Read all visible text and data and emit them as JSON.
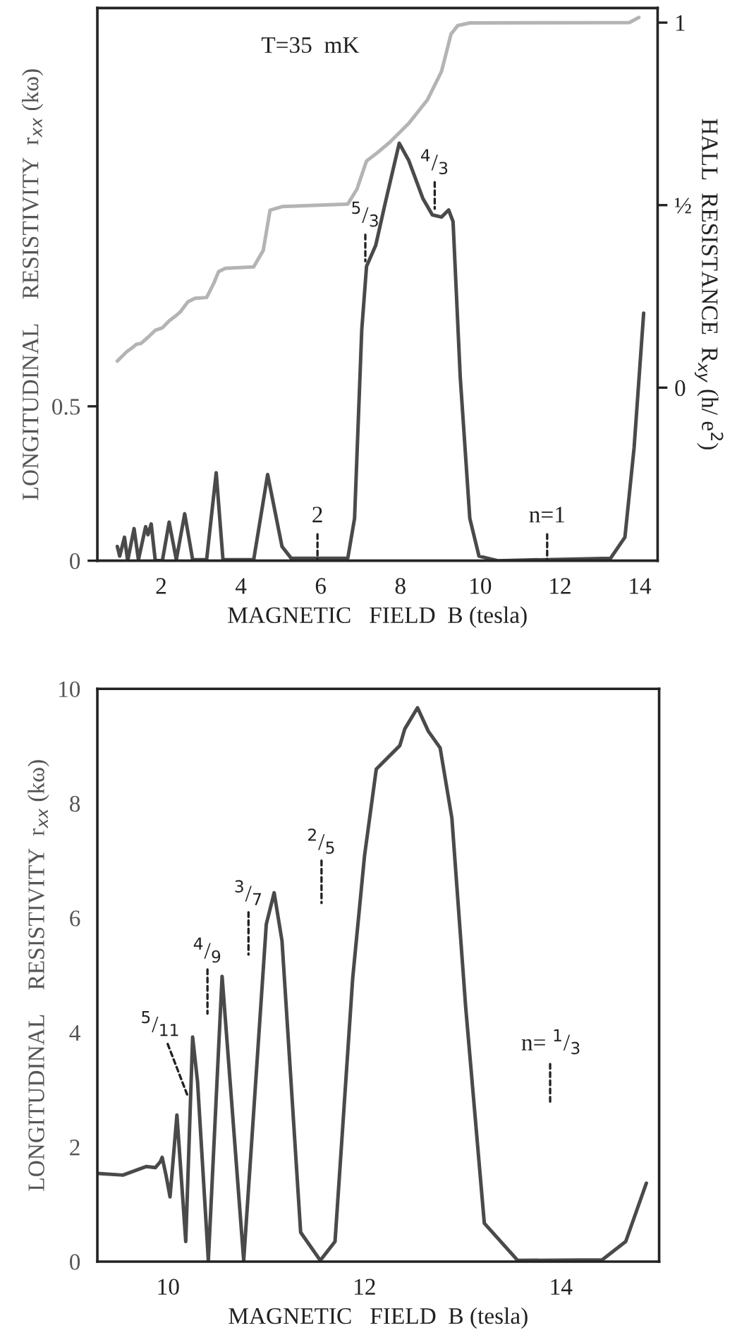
{
  "chart_data": [
    {
      "type": "line",
      "xlabel": "MAGNETIC   FIELD  B (tesla)",
      "ylabel": "LONGITUDINAL    RESISTIVITY  r$_{xx}$ (kω)",
      "y2label": "HALL  RESISTANCE  R$_{xy}$ (h/ e$^{2}$)",
      "xlim": [
        0.4,
        14.45
      ],
      "xticks": [
        2,
        4,
        6,
        8,
        10,
        12,
        14
      ],
      "ylim": [
        0,
        1.79
      ],
      "yticks": [
        0,
        0.5
      ],
      "y2lim": [
        -0.474,
        1.04
      ],
      "y2ticks": [
        0,
        {
          "value": 0.5,
          "label": "½"
        },
        1
      ],
      "grid": false,
      "legend": false,
      "line_style": "solid",
      "marker": "none",
      "series": [
        {
          "color": "#b4b4b4",
          "axis": "y2",
          "x": [
            0.9,
            1.02,
            1.14,
            1.26,
            1.38,
            1.49,
            1.67,
            1.85,
            2.03,
            2.2,
            2.38,
            2.49,
            2.67,
            2.85,
            3.14,
            3.32,
            3.44,
            3.61,
            4.32,
            4.56,
            4.73,
            5.03,
            6.68,
            6.91,
            7.15,
            7.38,
            7.74,
            8.21,
            8.68,
            9.03,
            9.27,
            9.44,
            9.74,
            13.74,
            13.98
          ],
          "values": [
            0.073,
            0.086,
            0.099,
            0.108,
            0.119,
            0.121,
            0.138,
            0.157,
            0.164,
            0.183,
            0.198,
            0.209,
            0.235,
            0.245,
            0.247,
            0.286,
            0.318,
            0.327,
            0.331,
            0.376,
            0.486,
            0.496,
            0.503,
            0.544,
            0.621,
            0.64,
            0.673,
            0.724,
            0.789,
            0.866,
            0.969,
            0.992,
            0.999,
            1.0,
            1.014
          ]
        },
        {
          "color": "#4a4a4a",
          "x": [
            0.9,
            0.96,
            1.08,
            1.16,
            1.32,
            1.43,
            1.61,
            1.67,
            1.75,
            1.85,
            2.03,
            2.2,
            2.38,
            2.59,
            2.79,
            3.14,
            3.38,
            3.55,
            4.32,
            4.67,
            5.03,
            5.26,
            6.68,
            6.85,
            7.03,
            7.15,
            7.38,
            7.62,
            7.97,
            8.21,
            8.56,
            8.8,
            9.03,
            9.21,
            9.32,
            9.5,
            9.74,
            9.97,
            10.44,
            13.27,
            13.63,
            13.86,
            14.1
          ],
          "values": [
            0.046,
            0.015,
            0.076,
            0.0,
            0.104,
            0.003,
            0.11,
            0.084,
            0.119,
            0.003,
            0.0,
            0.125,
            0.003,
            0.152,
            0.003,
            0.003,
            0.285,
            0.003,
            0.003,
            0.279,
            0.046,
            0.008,
            0.008,
            0.137,
            0.747,
            0.953,
            1.021,
            1.159,
            1.352,
            1.296,
            1.174,
            1.12,
            1.113,
            1.136,
            1.098,
            0.595,
            0.137,
            0.015,
            0.0,
            0.008,
            0.076,
            0.366,
            0.802
          ]
        }
      ],
      "annotations": [
        "T=35  mK",
        {
          "text": "2",
          "x": 5.92,
          "y": 0.0
        },
        {
          "text": "n=1",
          "x": 11.68,
          "y": 0.0
        },
        {
          "text": "$^{5}$/$_{3}$",
          "x": 7.12,
          "y": 0.97
        },
        {
          "text": "$^{4}$/$_{3}$",
          "x": 8.86,
          "y": 1.14
        }
      ]
    },
    {
      "type": "line",
      "xlabel": "MAGNETIC   FIELD  B (tesla)",
      "ylabel": "LONGITUDINAL    RESISTIVITY  r$_{xx}$ (kω)",
      "xlim": [
        9.28,
        15.0
      ],
      "xticks": [
        10,
        12,
        14
      ],
      "ylim": [
        0,
        10
      ],
      "yticks": [
        0,
        2,
        4,
        6,
        8,
        10
      ],
      "grid": false,
      "legend": false,
      "line_style": "solid",
      "marker": "none",
      "series": [
        {
          "color": "#4a4a4a",
          "x": [
            9.28,
            9.54,
            9.78,
            9.87,
            9.92,
            9.94,
            9.98,
            10.02,
            10.09,
            10.18,
            10.25,
            10.3,
            10.41,
            10.55,
            10.61,
            10.77,
            11.0,
            11.08,
            11.16,
            11.35,
            11.55,
            11.7,
            11.88,
            12.0,
            12.12,
            12.36,
            12.41,
            12.54,
            12.65,
            12.77,
            12.89,
            13.03,
            13.22,
            13.56,
            14.42,
            14.66,
            14.87
          ],
          "values": [
            1.54,
            1.51,
            1.66,
            1.64,
            1.74,
            1.82,
            1.5,
            1.13,
            2.56,
            0.35,
            3.92,
            3.14,
            0.02,
            4.98,
            3.63,
            0.02,
            5.89,
            6.44,
            5.6,
            0.51,
            0.02,
            0.35,
            4.95,
            7.08,
            8.6,
            9.01,
            9.3,
            9.67,
            9.26,
            8.97,
            7.74,
            4.45,
            0.67,
            0.02,
            0.03,
            0.35,
            1.37
          ]
        }
      ],
      "annotations": [
        {
          "text": "$^{5}$/$_{11}$",
          "x": 10.2,
          "y": 2.89
        },
        "$^{4}$/$_{9}$",
        "$^{3}$/$_{7}$",
        "$^{2}$/$_{5}$",
        "n= $^{1}$/$_{3}$"
      ]
    }
  ]
}
